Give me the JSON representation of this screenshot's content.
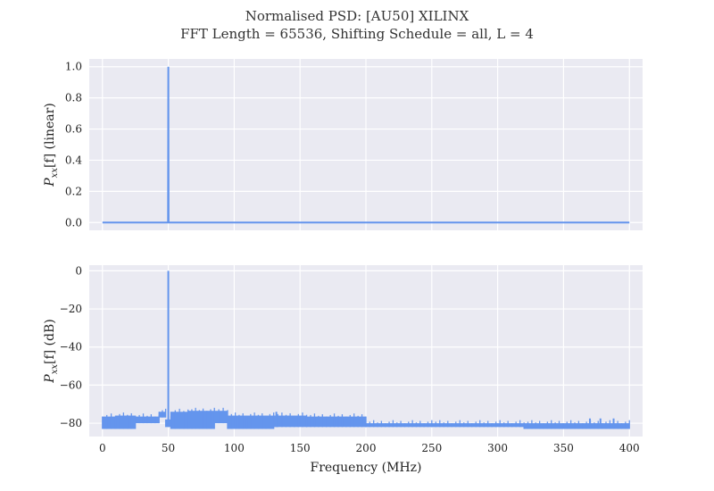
{
  "chart_data": {
    "title": "Normalised PSD: [AU50] XILINX",
    "subtitle": "FFT Length = 65536, Shifting Schedule = all, L = 4",
    "xlabel": "Frequency (MHz)",
    "colors": {
      "line": "#6495ed",
      "axes_bg": "#eaeaf2",
      "grid": "#ffffff"
    },
    "panels": [
      {
        "type": "line",
        "ylabel": "P_xx[f] (linear)",
        "xlim": [
          -10,
          410
        ],
        "ylim": [
          -0.05,
          1.05
        ],
        "xticks": [
          0,
          50,
          100,
          150,
          200,
          250,
          300,
          350,
          400
        ],
        "yticks": [
          0.0,
          0.2,
          0.4,
          0.6,
          0.8,
          1.0
        ],
        "ytick_labels": [
          "0.0",
          "0.2",
          "0.4",
          "0.6",
          "0.8",
          "1.0"
        ],
        "xtick_labels_visible": false,
        "series": [
          {
            "x": [
              0,
              49.8,
              50,
              50.2,
              400
            ],
            "y": [
              0.0,
              0.0,
              1.0,
              0.0,
              0.0
            ]
          }
        ]
      },
      {
        "type": "line",
        "ylabel": "P_xx[f] (dB)",
        "xlim": [
          -10,
          410
        ],
        "ylim": [
          -87,
          3
        ],
        "xticks": [
          0,
          50,
          100,
          150,
          200,
          250,
          300,
          350,
          400
        ],
        "xtick_labels": [
          "0",
          "50",
          "100",
          "150",
          "200",
          "250",
          "300",
          "350",
          "400"
        ],
        "yticks": [
          -80,
          -60,
          -40,
          -20,
          0
        ],
        "ytick_labels": [
          "−80",
          "−60",
          "−40",
          "−20",
          "0"
        ],
        "xtick_labels_visible": true,
        "noise_floor_segments": [
          {
            "x0": 0,
            "x1": 10,
            "top": -76.5,
            "bottom": -83
          },
          {
            "x0": 10,
            "x1": 25,
            "top": -76,
            "bottom": -83
          },
          {
            "x0": 25,
            "x1": 43,
            "top": -76.5,
            "bottom": -80
          },
          {
            "x0": 43,
            "x1": 48,
            "top": -74,
            "bottom": -77
          },
          {
            "x0": 48,
            "x1": 52,
            "top": -78,
            "bottom": -82
          },
          {
            "x0": 52,
            "x1": 65,
            "top": -74,
            "bottom": -83
          },
          {
            "x0": 65,
            "x1": 85,
            "top": -73.5,
            "bottom": -83
          },
          {
            "x0": 85,
            "x1": 95,
            "top": -73.5,
            "bottom": -80
          },
          {
            "x0": 95,
            "x1": 130,
            "top": -76,
            "bottom": -83
          },
          {
            "x0": 130,
            "x1": 155,
            "top": -76,
            "bottom": -82
          },
          {
            "x0": 155,
            "x1": 200,
            "top": -76.5,
            "bottom": -82
          },
          {
            "x0": 200,
            "x1": 250,
            "top": -80,
            "bottom": -82
          },
          {
            "x0": 250,
            "x1": 320,
            "top": -80,
            "bottom": -82
          },
          {
            "x0": 320,
            "x1": 400,
            "top": -80,
            "bottom": -83
          }
        ],
        "spikes": [
          {
            "x": 132,
            "y": -74
          },
          {
            "x": 370,
            "y": -77.5
          },
          {
            "x": 378,
            "y": -77.5
          },
          {
            "x": 388,
            "y": -77.5
          }
        ],
        "peak": {
          "x": 50,
          "y": 0
        }
      }
    ]
  }
}
